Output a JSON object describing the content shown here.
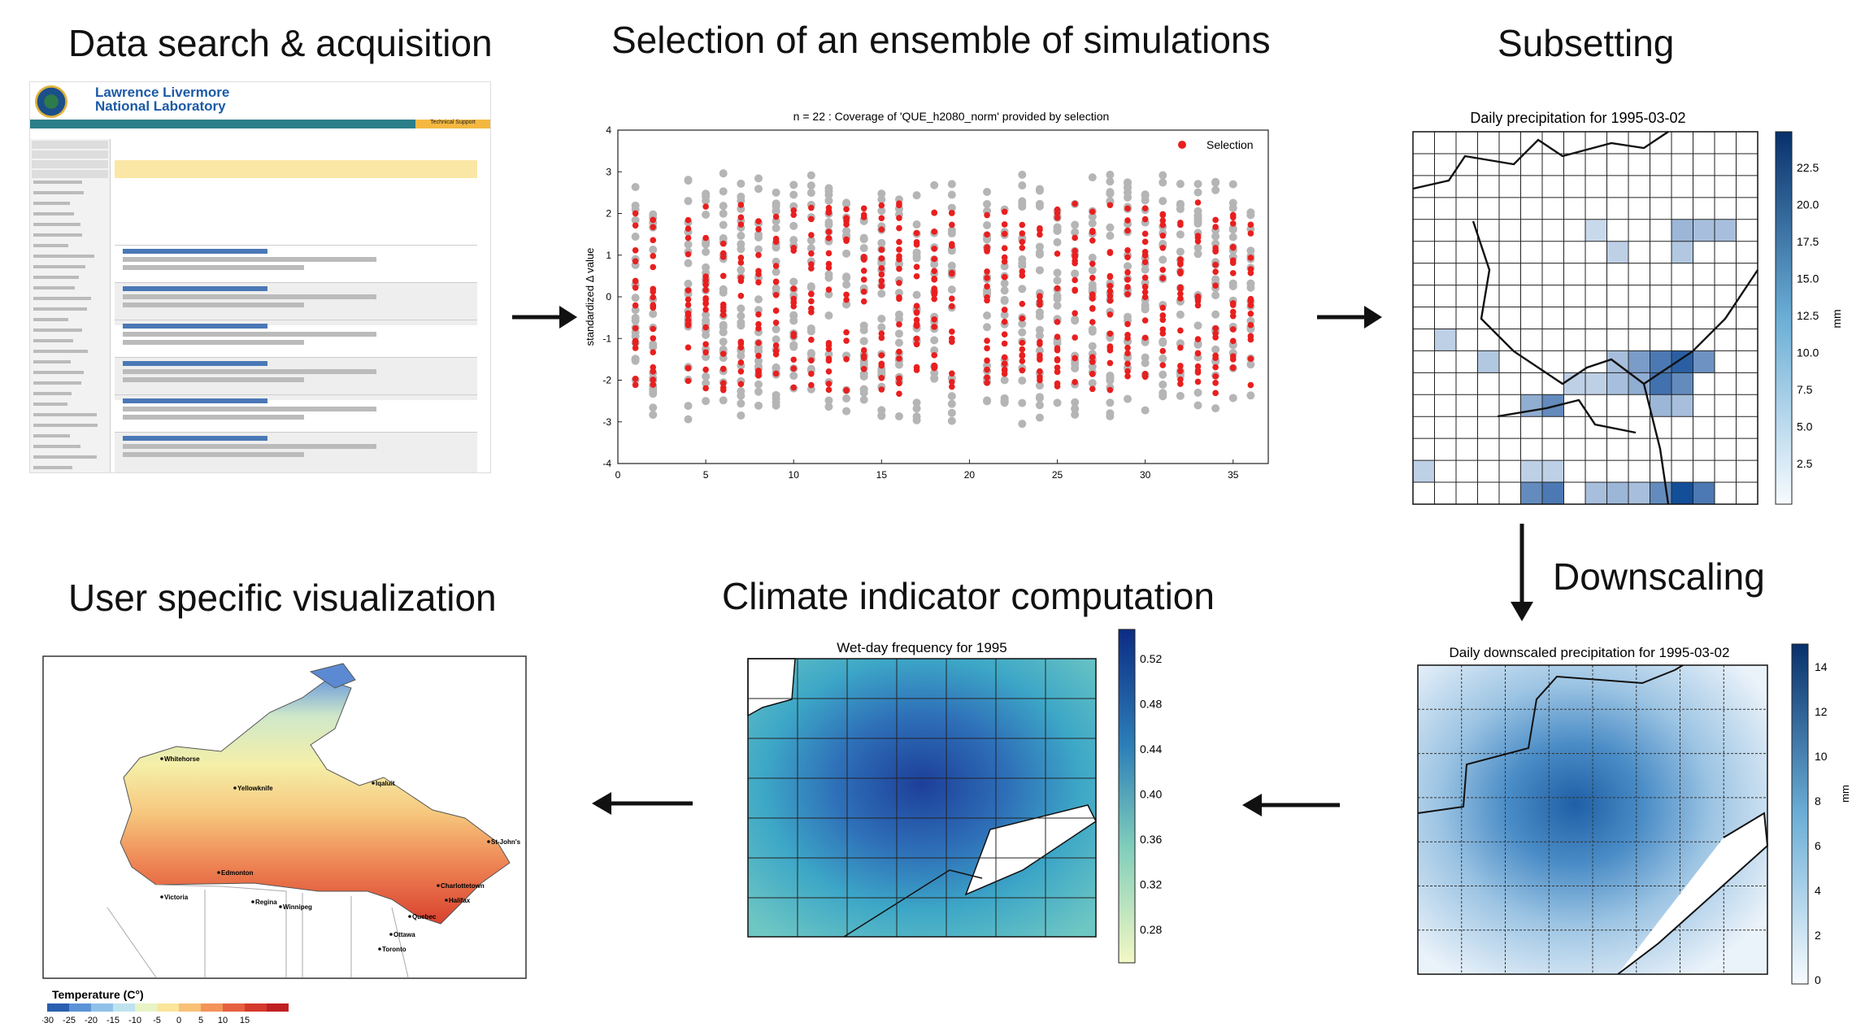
{
  "titles": {
    "data_search": "Data search & acquisition",
    "selection": "Selection of an ensemble of simulations",
    "subsetting": "Subsetting",
    "downscaling": "Downscaling",
    "climate_indicator": "Climate indicator computation",
    "user_visualization": "User specific visualization"
  },
  "llnl": {
    "org_line1": "Lawrence Livermore",
    "org_line2": "National Laboratory",
    "tech_support": "Technical Support"
  },
  "scatter": {
    "chart_data": {
      "type": "scatter",
      "title": "n = 22 : Coverage of 'QUE_h2080_norm' provided by selection",
      "xlabel": "",
      "ylabel": "standardized Δ value",
      "xlim": [
        0,
        37
      ],
      "ylim": [
        -4,
        4
      ],
      "xticks": [
        0,
        5,
        10,
        15,
        20,
        25,
        30,
        35
      ],
      "yticks": [
        -4,
        -3,
        -2,
        -1,
        0,
        1,
        2,
        3,
        4
      ],
      "legend": {
        "label": "Selection",
        "placement": "top-right"
      },
      "series": [
        {
          "name": "Selection",
          "color": "#e81f1f",
          "x_range": [
            1,
            36
          ],
          "y_range": [
            -2.5,
            2.5
          ]
        },
        {
          "name": "",
          "color": "#b5b5b5",
          "x_range": [
            1,
            36
          ],
          "y_range": [
            -3.2,
            3.2
          ]
        }
      ]
    },
    "grid": false
  },
  "subset_map": {
    "title": "Daily precipitation for 1995-03-02",
    "colorbar_label": "mm",
    "colorbar_ticks": [
      "22.5",
      "20.0",
      "17.5",
      "15.0",
      "12.5",
      "10.0",
      "7.5",
      "5.0",
      "2.5"
    ]
  },
  "downscaled_map": {
    "title": "Daily downscaled precipitation for 1995-03-02",
    "colorbar_label": "mm",
    "colorbar_ticks": [
      "14",
      "12",
      "10",
      "8",
      "6",
      "4",
      "2",
      "0"
    ]
  },
  "wetday_map": {
    "title": "Wet-day frequency for 1995",
    "colorbar_ticks": [
      "0.52",
      "0.48",
      "0.44",
      "0.40",
      "0.36",
      "0.32",
      "0.28"
    ]
  },
  "canada_map": {
    "legend_title": "Temperature (C°)",
    "legend_ticks": [
      "-30",
      "-25",
      "-20",
      "-15",
      "-10",
      "-5",
      "0",
      "5",
      "10",
      "15"
    ],
    "legend_colors": [
      "#2a5fb0",
      "#5c93d6",
      "#8fc1e8",
      "#bfe3ee",
      "#e8f4c6",
      "#fbe59a",
      "#f9c077",
      "#f39458",
      "#e6603f",
      "#d43a2c",
      "#c01f22"
    ],
    "cities": [
      "Whitehorse",
      "Yellowknife",
      "Iqaluit",
      "Edmonton",
      "Victoria",
      "Regina",
      "Winnipeg",
      "Quebec",
      "Ottawa",
      "Toronto",
      "Charlottetown",
      "Halifax",
      "St-John's"
    ]
  },
  "colors": {
    "scatter_red": "#e81f1f",
    "scatter_grey": "#b5b5b5",
    "blues_dark": "#08306b"
  }
}
